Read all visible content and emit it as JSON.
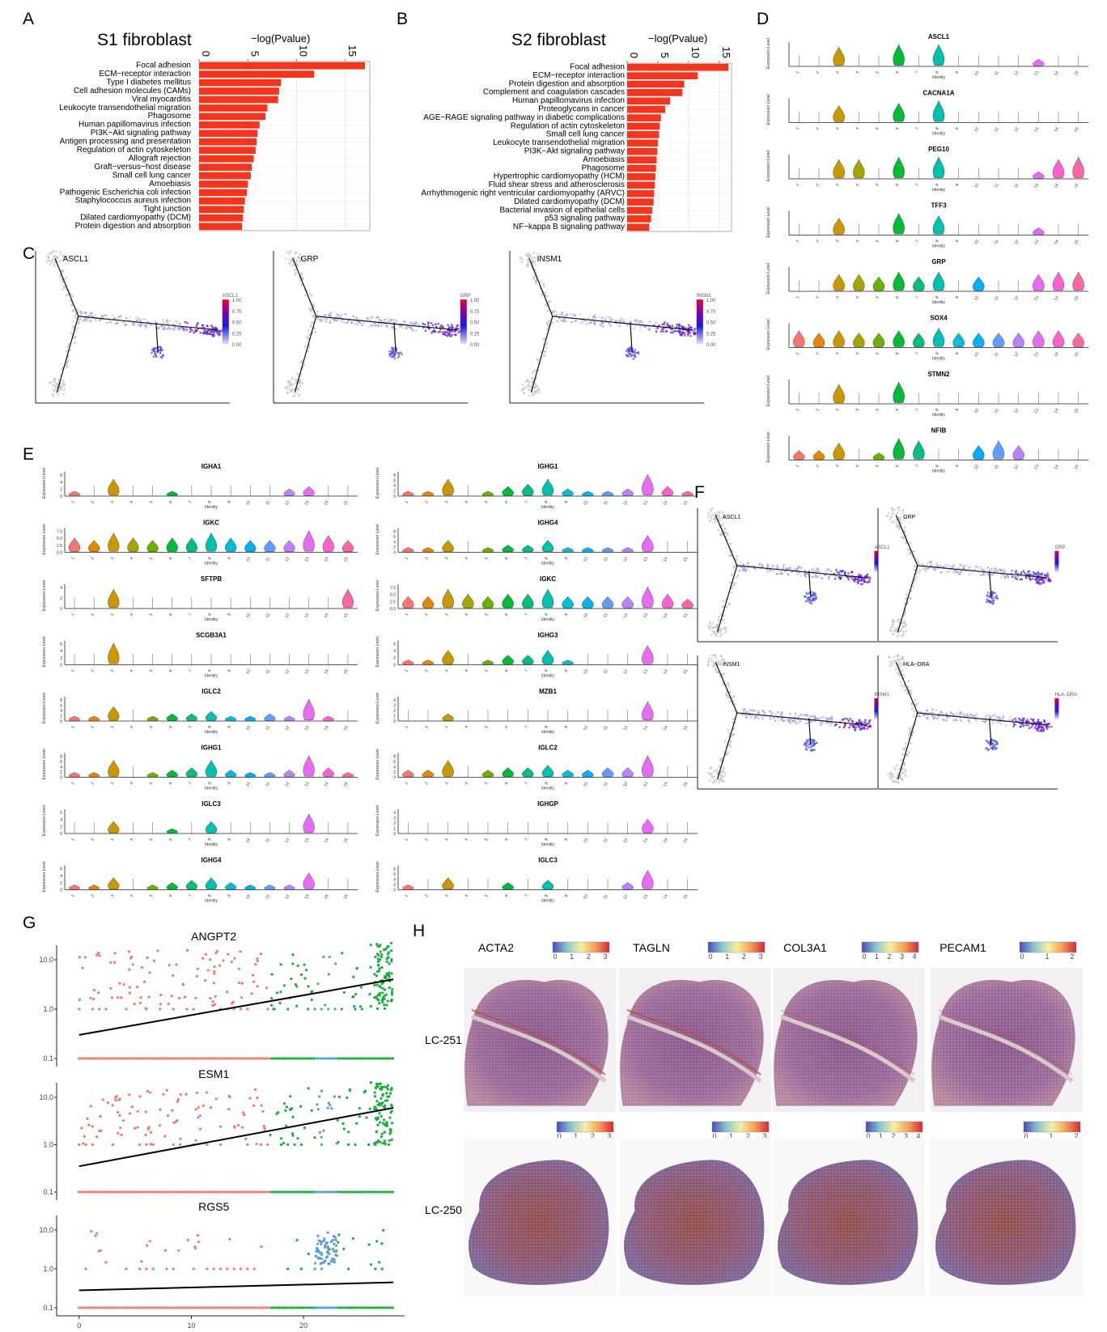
{
  "panel_labels": [
    "A",
    "B",
    "C",
    "D",
    "E",
    "F",
    "G",
    "H"
  ],
  "chart_data": [
    {
      "type": "bar",
      "panel": "A",
      "title": "S1 fibroblast",
      "xlabel": "−log(Pvalue)",
      "xlim": [
        0,
        17.5
      ],
      "xticks": [
        0,
        5,
        10,
        15
      ],
      "categories": [
        "Focal adhesion",
        "ECM−receptor interaction",
        "Type I diabetes mellitus",
        "Cell adhesion molecules (CAMs)",
        "Viral myocarditis",
        "Leukocyte transendothelial migration",
        "Phagosome",
        "Human papillomavirus infection",
        "PI3K−Akt signaling pathway",
        "Antigen processing and presentation",
        "Regulation of actin cytoskeleton",
        "Allograft rejection",
        "Graft−versus−host disease",
        "Small cell lung cancer",
        "Amoebiasis",
        "Pathogenic Escherichia coli infection",
        "Staphylococcus aureus infection",
        "Tight junction",
        "Dilated cardiomyopathy (DCM)",
        "Protein digestion and absorption"
      ],
      "values": [
        17.0,
        11.8,
        8.4,
        8.2,
        8.1,
        7.0,
        6.8,
        6.2,
        6.0,
        5.9,
        5.8,
        5.6,
        5.4,
        5.3,
        5.0,
        4.9,
        4.7,
        4.6,
        4.5,
        4.4
      ],
      "color": "#f4341c"
    },
    {
      "type": "bar",
      "panel": "B",
      "title": "S2 fibroblast",
      "xlabel": "−log(Pvalue)",
      "xlim": [
        0,
        17
      ],
      "xticks": [
        0,
        5,
        10,
        15
      ],
      "categories": [
        "Focal adhesion",
        "ECM−receptor interaction",
        "Protein digestion and absorption",
        "Complement and coagulation cascades",
        "Human papillomavirus infection",
        "Proteoglycans in cancer",
        "AGE−RAGE signaling pathway in diabetic complications",
        "Regulation of actin cytoskeleton",
        "Small cell lung cancer",
        "Leukocyte transendothelial migration",
        "PI3K−Akt signaling pathway",
        "Amoebiasis",
        "Phagosome",
        "Hypertrophic cardiomyopathy (HCM)",
        "Fluid shear stress and atherosclerosis",
        "Arrhythmogenic right ventricular cardiomyopathy (ARVC)",
        "Dilated cardiomyopathy (DCM)",
        "Bacterial invasion of epithelial cells",
        "p53 signaling pathway",
        "NF−kappa B signaling pathway"
      ],
      "values": [
        16.5,
        11.5,
        9.3,
        9.0,
        7.0,
        6.2,
        5.5,
        5.3,
        5.2,
        5.0,
        4.9,
        4.8,
        4.7,
        4.6,
        4.5,
        4.4,
        4.3,
        4.1,
        3.9,
        3.6
      ],
      "color": "#f4341c"
    },
    {
      "type": "trajectory",
      "panel": "C",
      "genes": [
        "ASCL1",
        "GRP",
        "INSM1"
      ],
      "legend_ticks": [
        "1.00",
        "0.75",
        "0.50",
        "0.25",
        "0.00"
      ],
      "legend_colors": [
        "#e8002f",
        "#6a00c8",
        "#1a1ae0",
        "#d8d8f0"
      ]
    },
    {
      "type": "violin",
      "panel": "D",
      "clusters": [
        "1",
        "2",
        "3",
        "4",
        "5",
        "6",
        "7",
        "8",
        "9",
        "10",
        "11",
        "12",
        "13",
        "14",
        "15"
      ],
      "cluster_colors": [
        "#f8766d",
        "#e58700",
        "#c99800",
        "#a3a500",
        "#6bb100",
        "#00ba38",
        "#00bf7d",
        "#00c0af",
        "#00bcd8",
        "#00b0f6",
        "#619cff",
        "#b983ff",
        "#e76bf3",
        "#fd61d1",
        "#ff67a4"
      ],
      "xlabel": "Identity",
      "ylabel": "Expression Level",
      "genes": [
        {
          "name": "ASCL1",
          "levels": [
            0,
            0,
            0.8,
            0,
            0,
            0.9,
            0,
            0.9,
            0,
            0,
            0,
            0,
            0.3,
            0,
            0
          ]
        },
        {
          "name": "CACNA1A",
          "levels": [
            0,
            0,
            0.7,
            0,
            0,
            0.8,
            0,
            0.9,
            0,
            0,
            0,
            0,
            0,
            0,
            0
          ]
        },
        {
          "name": "PEG10",
          "levels": [
            0,
            0,
            0.8,
            0.8,
            0,
            0.9,
            0,
            0.9,
            0,
            0,
            0,
            0,
            0.3,
            0.8,
            0.9
          ]
        },
        {
          "name": "TFF3",
          "levels": [
            0,
            0,
            0.7,
            0,
            0,
            0.9,
            0,
            0.8,
            0,
            0,
            0,
            0,
            0.3,
            0,
            0
          ]
        },
        {
          "name": "GRP",
          "levels": [
            0,
            0,
            0.7,
            0.7,
            0.6,
            0.8,
            0.6,
            0.8,
            0,
            0.6,
            0,
            0,
            0.7,
            0.8,
            0.8
          ]
        },
        {
          "name": "SOX4",
          "levels": [
            0.7,
            0.6,
            0.7,
            0.6,
            0.6,
            0.7,
            0.6,
            0.8,
            0.6,
            0.6,
            0.6,
            0.6,
            0.7,
            0.7,
            0.6
          ]
        },
        {
          "name": "STMN2",
          "levels": [
            0,
            0,
            0.8,
            0,
            0,
            0.9,
            0,
            0,
            0,
            0,
            0,
            0,
            0,
            0,
            0
          ]
        },
        {
          "name": "NFIB",
          "levels": [
            0.4,
            0.4,
            0.7,
            0,
            0.3,
            0.9,
            0.8,
            0,
            0,
            0.6,
            0.8,
            0.6,
            0,
            0,
            0
          ]
        }
      ]
    },
    {
      "type": "violin",
      "panel": "E",
      "clusters": [
        "1",
        "2",
        "3",
        "4",
        "5",
        "6",
        "7",
        "8",
        "9",
        "10",
        "11",
        "12",
        "13",
        "14",
        "15"
      ],
      "xlabel": "Identity",
      "ylabel": "Expression Level",
      "left_genes": [
        {
          "name": "IGHA1",
          "levels": [
            0.2,
            0,
            0.7,
            0,
            0,
            0.2,
            0,
            0,
            0,
            0,
            0,
            0.3,
            0.4,
            0,
            0
          ],
          "yticks": [
            "0",
            "2",
            "4",
            "6"
          ]
        },
        {
          "name": "IGKC",
          "levels": [
            0.6,
            0.5,
            0.8,
            0.6,
            0.5,
            0.6,
            0.6,
            0.8,
            0.6,
            0.5,
            0.5,
            0.5,
            0.9,
            0.7,
            0.5
          ],
          "yticks": [
            "0.0",
            "2.5",
            "5.0",
            "7.5"
          ]
        },
        {
          "name": "SFTPB",
          "levels": [
            0,
            0,
            0.8,
            0,
            0,
            0,
            0,
            0,
            0,
            0,
            0,
            0,
            0,
            0,
            0.8
          ],
          "yticks": [
            "0",
            "2",
            "4"
          ]
        },
        {
          "name": "SCGB3A1",
          "levels": [
            0,
            0,
            0.9,
            0,
            0,
            0,
            0,
            0,
            0,
            0,
            0,
            0,
            0,
            0,
            0
          ],
          "yticks": [
            "0",
            "2",
            "4",
            "6"
          ]
        },
        {
          "name": "IGLC2",
          "levels": [
            0.2,
            0.2,
            0.6,
            0,
            0.2,
            0.3,
            0.3,
            0.4,
            0.2,
            0.2,
            0.3,
            0.2,
            0.9,
            0.2,
            0
          ],
          "yticks": [
            "0",
            "2",
            "4",
            "6",
            "8"
          ]
        },
        {
          "name": "IGHG1",
          "levels": [
            0.2,
            0.2,
            0.7,
            0,
            0.2,
            0.3,
            0.4,
            0.7,
            0.3,
            0.2,
            0.2,
            0.3,
            0.9,
            0.4,
            0.2
          ],
          "yticks": [
            "0",
            "2",
            "4",
            "6",
            "8"
          ]
        },
        {
          "name": "IGLC3",
          "levels": [
            0,
            0,
            0.5,
            0,
            0,
            0.2,
            0,
            0.5,
            0,
            0,
            0,
            0,
            0.8,
            0,
            0
          ],
          "yticks": [
            "0",
            "2",
            "4",
            "6"
          ]
        },
        {
          "name": "IGHG4",
          "levels": [
            0.2,
            0.2,
            0.5,
            0,
            0.2,
            0.3,
            0.4,
            0.5,
            0.3,
            0.2,
            0.2,
            0.2,
            0.7,
            0,
            0
          ],
          "yticks": [
            "0",
            "2",
            "4",
            "6"
          ]
        }
      ],
      "right_genes": [
        {
          "name": "IGHG1",
          "levels": [
            0.2,
            0.2,
            0.7,
            0,
            0.2,
            0.4,
            0.5,
            0.7,
            0.3,
            0.2,
            0.2,
            0.3,
            0.9,
            0.4,
            0.2
          ],
          "yticks": [
            "0",
            "2",
            "4",
            "6",
            "8"
          ]
        },
        {
          "name": "IGHG4",
          "levels": [
            0.2,
            0.2,
            0.5,
            0,
            0.2,
            0.3,
            0.3,
            0.5,
            0.2,
            0.2,
            0.2,
            0.2,
            0.7,
            0,
            0
          ],
          "yticks": [
            "0",
            "2",
            "4",
            "6",
            "8"
          ]
        },
        {
          "name": "IGKC",
          "levels": [
            0.5,
            0.5,
            0.8,
            0.6,
            0.5,
            0.6,
            0.6,
            0.8,
            0.5,
            0.5,
            0.5,
            0.5,
            0.9,
            0.6,
            0.4
          ],
          "yticks": [
            "0.0",
            "2.5",
            "5.0",
            "7.5"
          ]
        },
        {
          "name": "IGHG3",
          "levels": [
            0.2,
            0.2,
            0.6,
            0,
            0.2,
            0.4,
            0.4,
            0.6,
            0.2,
            0,
            0,
            0,
            0.8,
            0,
            0
          ],
          "yticks": [
            "0",
            "2",
            "4",
            "6"
          ]
        },
        {
          "name": "MZB1",
          "levels": [
            0,
            0,
            0.3,
            0,
            0,
            0,
            0,
            0,
            0,
            0,
            0,
            0,
            0.8,
            0,
            0
          ],
          "yticks": [
            "0",
            "1",
            "2",
            "3",
            "4"
          ]
        },
        {
          "name": "IGLC2",
          "levels": [
            0.3,
            0.3,
            0.7,
            0,
            0.3,
            0.4,
            0.4,
            0.5,
            0.3,
            0.3,
            0.4,
            0.4,
            0.9,
            0,
            0
          ],
          "yticks": [
            "0",
            "2",
            "4",
            "6",
            "8"
          ]
        },
        {
          "name": "IGHGP",
          "levels": [
            0,
            0,
            0,
            0,
            0,
            0,
            0,
            0,
            0,
            0,
            0,
            0,
            0.6,
            0,
            0
          ],
          "yticks": [
            "0",
            "1",
            "2",
            "3",
            "4"
          ]
        },
        {
          "name": "IGLC3",
          "levels": [
            0.2,
            0,
            0.5,
            0,
            0,
            0.3,
            0,
            0.4,
            0,
            0,
            0,
            0.3,
            0.8,
            0,
            0
          ],
          "yticks": [
            "0",
            "2",
            "4",
            "6",
            "8"
          ]
        }
      ]
    },
    {
      "type": "trajectory",
      "panel": "F",
      "genes": [
        "ASCL1",
        "GRP",
        "INSM1",
        "HLA−DRA"
      ]
    },
    {
      "type": "scatter",
      "panel": "G",
      "xlim": [
        -2,
        29
      ],
      "xticks": [
        0,
        10,
        20
      ],
      "yticks": [
        "10.0",
        "1.0",
        "0.1"
      ],
      "colors": {
        "early": "#f07a72",
        "mid": "#5b9bd5",
        "late": "#1aad3e"
      },
      "trend": [
        {
          "gene": "ANGPT2",
          "y_start": 0.3,
          "y_end": 4.0
        },
        {
          "gene": "ESM1",
          "y_start": 0.35,
          "y_end": 6.0
        },
        {
          "gene": "RGS5",
          "y_start": 0.28,
          "y_end": 0.45
        }
      ]
    },
    {
      "type": "heatmap",
      "panel": "H",
      "genes": [
        "ACTA2",
        "TAGLN",
        "COL3A1",
        "PECAM1"
      ],
      "samples": [
        "LC-251",
        "LC-250"
      ],
      "scale_ticks": [
        [
          "0",
          "1",
          "2",
          "3"
        ],
        [
          "0",
          "1",
          "2",
          "3"
        ],
        [
          "0",
          "1",
          "2",
          "3",
          "4"
        ],
        [
          "0",
          "1",
          "2"
        ]
      ],
      "scale_colors": [
        "#4a4bb5",
        "#8ac6d0",
        "#f5f0a0",
        "#f4a05a",
        "#d2283a"
      ]
    }
  ],
  "strings": {
    "identity": "Identity",
    "expression_level": "Expression Level"
  }
}
